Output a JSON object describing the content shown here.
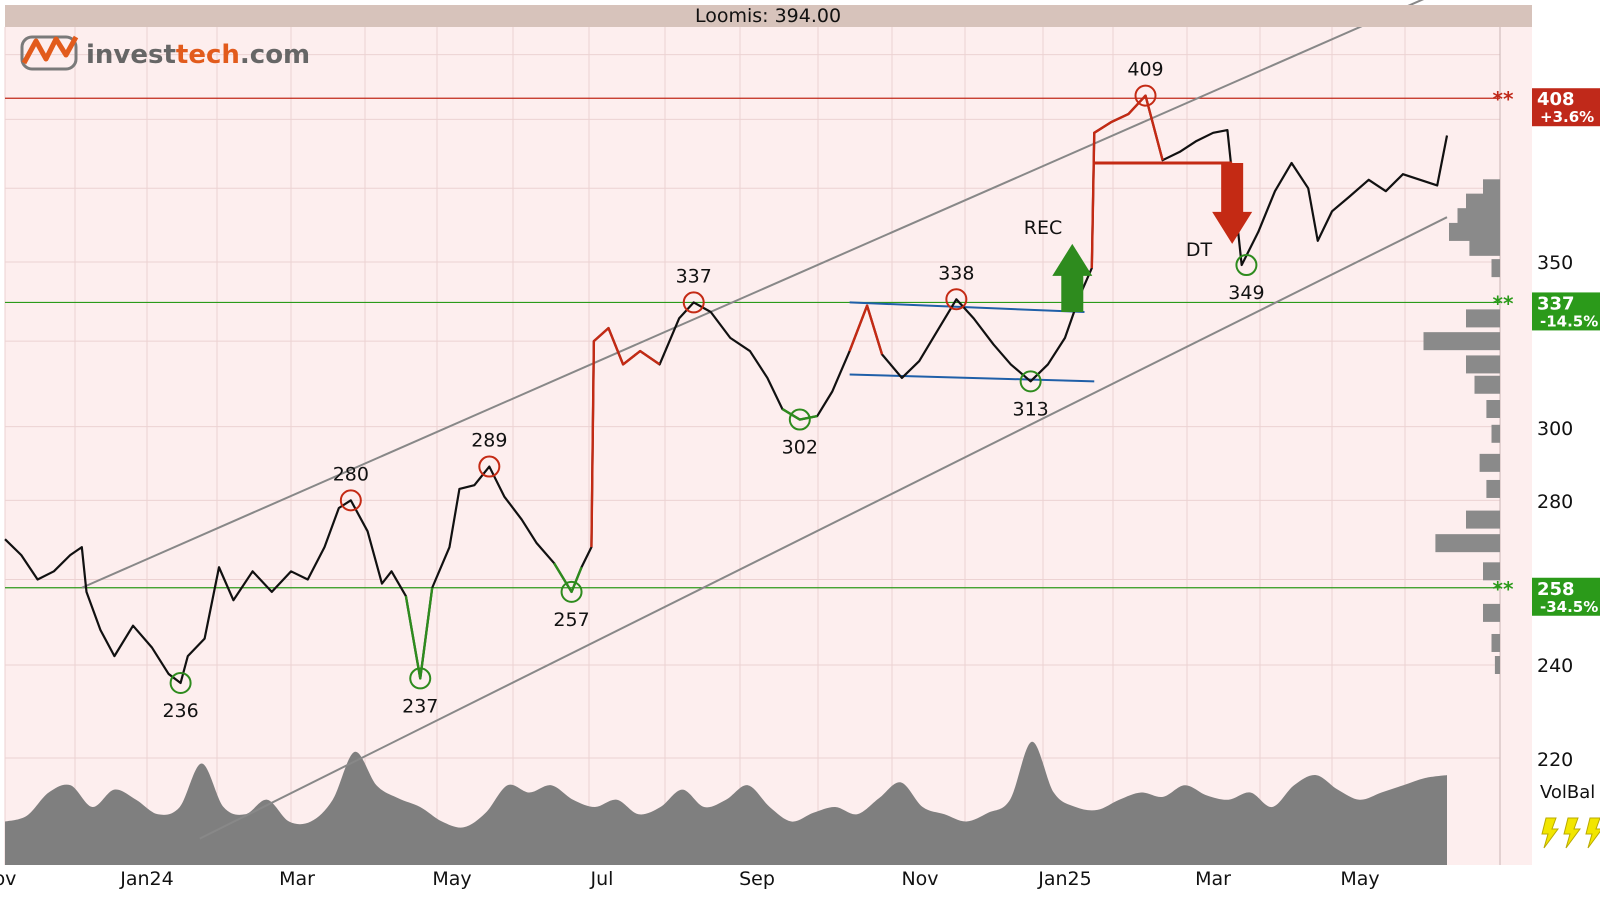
{
  "header": {
    "title": "Loomis: 394.00"
  },
  "logo": {
    "text_a": "invest",
    "text_b": "tech",
    "text_c": ".com"
  },
  "colors": {
    "plot_bg": "#fdeeee",
    "grid": "#ecd2d2",
    "title_bar": "#d7c3bb",
    "price": "#111111",
    "buy_signal": "#2e8b1e",
    "sell_signal": "#c42a14",
    "resistance": "#c0291a",
    "support": "#2b9a1a",
    "channel": "#888888",
    "triangle": "#1f5fa8",
    "volume": "#7f7f7f"
  },
  "chart_data": {
    "type": "line",
    "title": "Loomis: 394.00",
    "x_axis": {
      "labels": [
        "ov",
        "Jan24",
        "Mar",
        "May",
        "Jul",
        "Sep",
        "Nov",
        "Jan25",
        "Mar",
        "May"
      ],
      "grid": true
    },
    "y_axis": {
      "scale": "log",
      "range": [
        233,
        432
      ],
      "tick_labels": [
        "220",
        "240",
        "280",
        "300",
        "350"
      ],
      "position": "right"
    },
    "price_series": {
      "name": "Loomis",
      "last": 394.0,
      "points": [
        [
          "2023-11-01",
          270
        ],
        [
          "2023-11-08",
          266
        ],
        [
          "2023-11-15",
          260
        ],
        [
          "2023-11-22",
          262
        ],
        [
          "2023-11-29",
          266
        ],
        [
          "2023-12-04",
          268
        ],
        [
          "2023-12-06",
          257
        ],
        [
          "2023-12-12",
          248
        ],
        [
          "2023-12-18",
          242
        ],
        [
          "2023-12-26",
          249
        ],
        [
          "2024-01-03",
          244
        ],
        [
          "2024-01-10",
          238
        ],
        [
          "2024-01-15",
          236
        ],
        [
          "2024-01-18",
          242
        ],
        [
          "2024-01-25",
          246
        ],
        [
          "2024-01-31",
          263
        ],
        [
          "2024-02-06",
          255
        ],
        [
          "2024-02-14",
          262
        ],
        [
          "2024-02-22",
          257
        ],
        [
          "2024-03-01",
          262
        ],
        [
          "2024-03-08",
          260
        ],
        [
          "2024-03-15",
          268
        ],
        [
          "2024-03-21",
          278
        ],
        [
          "2024-03-26",
          280
        ],
        [
          "2024-04-02",
          272
        ],
        [
          "2024-04-08",
          259
        ],
        [
          "2024-04-12",
          262
        ],
        [
          "2024-04-18",
          256
        ],
        [
          "2024-04-24",
          237
        ],
        [
          "2024-04-29",
          258
        ],
        [
          "2024-05-06",
          268
        ],
        [
          "2024-05-10",
          283
        ],
        [
          "2024-05-16",
          284
        ],
        [
          "2024-05-22",
          289
        ],
        [
          "2024-05-28",
          281
        ],
        [
          "2024-06-04",
          275
        ],
        [
          "2024-06-10",
          269
        ],
        [
          "2024-06-17",
          264
        ],
        [
          "2024-06-24",
          257
        ],
        [
          "2024-06-28",
          263
        ],
        [
          "2024-07-02",
          268
        ],
        [
          "2024-07-03",
          325
        ],
        [
          "2024-07-09",
          329
        ],
        [
          "2024-07-15",
          318
        ],
        [
          "2024-07-22",
          322
        ],
        [
          "2024-07-30",
          318
        ],
        [
          "2024-08-07",
          332
        ],
        [
          "2024-08-13",
          337
        ],
        [
          "2024-08-20",
          334
        ],
        [
          "2024-08-28",
          326
        ],
        [
          "2024-09-05",
          322
        ],
        [
          "2024-09-12",
          314
        ],
        [
          "2024-09-18",
          305
        ],
        [
          "2024-09-25",
          302
        ],
        [
          "2024-10-02",
          303
        ],
        [
          "2024-10-08",
          310
        ],
        [
          "2024-10-15",
          322
        ],
        [
          "2024-10-22",
          336
        ],
        [
          "2024-10-28",
          321
        ],
        [
          "2024-11-05",
          314
        ],
        [
          "2024-11-12",
          319
        ],
        [
          "2024-11-20",
          329
        ],
        [
          "2024-11-27",
          338
        ],
        [
          "2024-12-04",
          332
        ],
        [
          "2024-12-12",
          324
        ],
        [
          "2024-12-19",
          318
        ],
        [
          "2024-12-27",
          313
        ],
        [
          "2025-01-03",
          318
        ],
        [
          "2025-01-10",
          326
        ],
        [
          "2025-01-16",
          339
        ],
        [
          "2025-01-21",
          348
        ],
        [
          "2025-01-22",
          395
        ],
        [
          "2025-01-29",
          399
        ],
        [
          "2025-02-05",
          402
        ],
        [
          "2025-02-12",
          409
        ],
        [
          "2025-02-19",
          385
        ],
        [
          "2025-02-26",
          388
        ],
        [
          "2025-03-05",
          392
        ],
        [
          "2025-03-12",
          395
        ],
        [
          "2025-03-18",
          396
        ],
        [
          "2025-03-24",
          349
        ],
        [
          "2025-03-31",
          360
        ],
        [
          "2025-04-07",
          374
        ],
        [
          "2025-04-14",
          384
        ],
        [
          "2025-04-21",
          375
        ],
        [
          "2025-04-25",
          357
        ],
        [
          "2025-05-01",
          367
        ],
        [
          "2025-05-08",
          372
        ],
        [
          "2025-05-16",
          378
        ],
        [
          "2025-05-23",
          374
        ],
        [
          "2025-05-30",
          380
        ],
        [
          "2025-06-06",
          378
        ],
        [
          "2025-06-13",
          376
        ],
        [
          "2025-06-17",
          394
        ]
      ]
    },
    "signal_segments": [
      {
        "color": "sell_signal",
        "from": "2024-07-02",
        "to": "2024-08-05"
      },
      {
        "color": "sell_signal",
        "from": "2024-10-15",
        "to": "2024-10-28"
      },
      {
        "color": "sell_signal",
        "from": "2025-01-21",
        "to": "2025-02-20"
      },
      {
        "color": "buy_signal",
        "from": "2024-04-18",
        "to": "2024-04-29"
      },
      {
        "color": "buy_signal",
        "from": "2024-06-17",
        "to": "2024-06-28"
      },
      {
        "color": "buy_signal",
        "from": "2024-09-18",
        "to": "2024-10-02"
      }
    ],
    "extrema": [
      {
        "date": "2024-01-15",
        "value": 236,
        "label": "236",
        "kind": "low"
      },
      {
        "date": "2024-03-26",
        "value": 280,
        "label": "280",
        "kind": "high"
      },
      {
        "date": "2024-04-24",
        "value": 237,
        "label": "237",
        "kind": "low"
      },
      {
        "date": "2024-05-22",
        "value": 289,
        "label": "289",
        "kind": "high"
      },
      {
        "date": "2024-06-24",
        "value": 257,
        "label": "257",
        "kind": "low"
      },
      {
        "date": "2024-08-13",
        "value": 337,
        "label": "337",
        "kind": "high"
      },
      {
        "date": "2024-09-25",
        "value": 302,
        "label": "302",
        "kind": "low"
      },
      {
        "date": "2024-11-27",
        "value": 338,
        "label": "338",
        "kind": "high"
      },
      {
        "date": "2024-12-27",
        "value": 313,
        "label": "313",
        "kind": "low"
      },
      {
        "date": "2025-02-12",
        "value": 409,
        "label": "409",
        "kind": "high"
      },
      {
        "date": "2025-03-26",
        "value": 349,
        "label": "349",
        "kind": "low"
      }
    ],
    "levels": [
      {
        "value": 408,
        "label": "408",
        "change": "+3.6%",
        "type": "resistance"
      },
      {
        "value": 337,
        "label": "337",
        "change": "-14.5%",
        "type": "support"
      },
      {
        "value": 258,
        "label": "258",
        "change": "-34.5%",
        "type": "support"
      }
    ],
    "channel_lines": [
      {
        "from": [
          "2023-12-04",
          258
        ],
        "to": [
          "2025-06-17",
          452
        ]
      },
      {
        "from": [
          "2024-01-23",
          204
        ],
        "to": [
          "2025-06-17",
          365
        ]
      }
    ],
    "triangle_lines": [
      {
        "from": [
          "2024-10-15",
          337
        ],
        "to": [
          "2025-01-18",
          334
        ]
      },
      {
        "from": [
          "2024-10-15",
          315
        ],
        "to": [
          "2025-01-22",
          313
        ]
      }
    ],
    "annotations": [
      {
        "text": "REC",
        "type": "arrow-up",
        "date": "2025-01-13",
        "value_base": 334,
        "value_tip": 356
      },
      {
        "text": "DT",
        "type": "arrow-down",
        "date": "2025-03-20",
        "value_base": 384,
        "value_tip": 356
      },
      {
        "type": "breakdown-line",
        "from": [
          "2025-01-22",
          384
        ],
        "to": [
          "2025-03-20",
          384
        ]
      }
    ],
    "volume_balance": {
      "label": "VolBal",
      "stars": 3,
      "values": [
        0.3,
        0.34,
        0.5,
        0.55,
        0.4,
        0.52,
        0.45,
        0.35,
        0.4,
        0.7,
        0.4,
        0.35,
        0.45,
        0.3,
        0.3,
        0.45,
        0.78,
        0.55,
        0.46,
        0.4,
        0.3,
        0.26,
        0.36,
        0.55,
        0.5,
        0.55,
        0.45,
        0.4,
        0.45,
        0.35,
        0.4,
        0.52,
        0.4,
        0.45,
        0.55,
        0.4,
        0.3,
        0.36,
        0.4,
        0.35,
        0.46,
        0.57,
        0.4,
        0.35,
        0.3,
        0.36,
        0.45,
        0.85,
        0.5,
        0.4,
        0.38,
        0.45,
        0.5,
        0.47,
        0.55,
        0.48,
        0.45,
        0.5,
        0.4,
        0.55,
        0.62,
        0.52,
        0.45,
        0.5,
        0.55,
        0.6,
        0.62
      ]
    },
    "volume_profile": [
      [
        375,
        0.1
      ],
      [
        370,
        0.2
      ],
      [
        365,
        0.25
      ],
      [
        360,
        0.3
      ],
      [
        355,
        0.18
      ],
      [
        348,
        0.05
      ],
      [
        332,
        0.2
      ],
      [
        325,
        0.45
      ],
      [
        318,
        0.2
      ],
      [
        312,
        0.15
      ],
      [
        305,
        0.08
      ],
      [
        298,
        0.05
      ],
      [
        290,
        0.12
      ],
      [
        283,
        0.08
      ],
      [
        275,
        0.2
      ],
      [
        269,
        0.38
      ],
      [
        262,
        0.1
      ],
      [
        252,
        0.1
      ],
      [
        245,
        0.05
      ],
      [
        240,
        0.03
      ]
    ]
  }
}
